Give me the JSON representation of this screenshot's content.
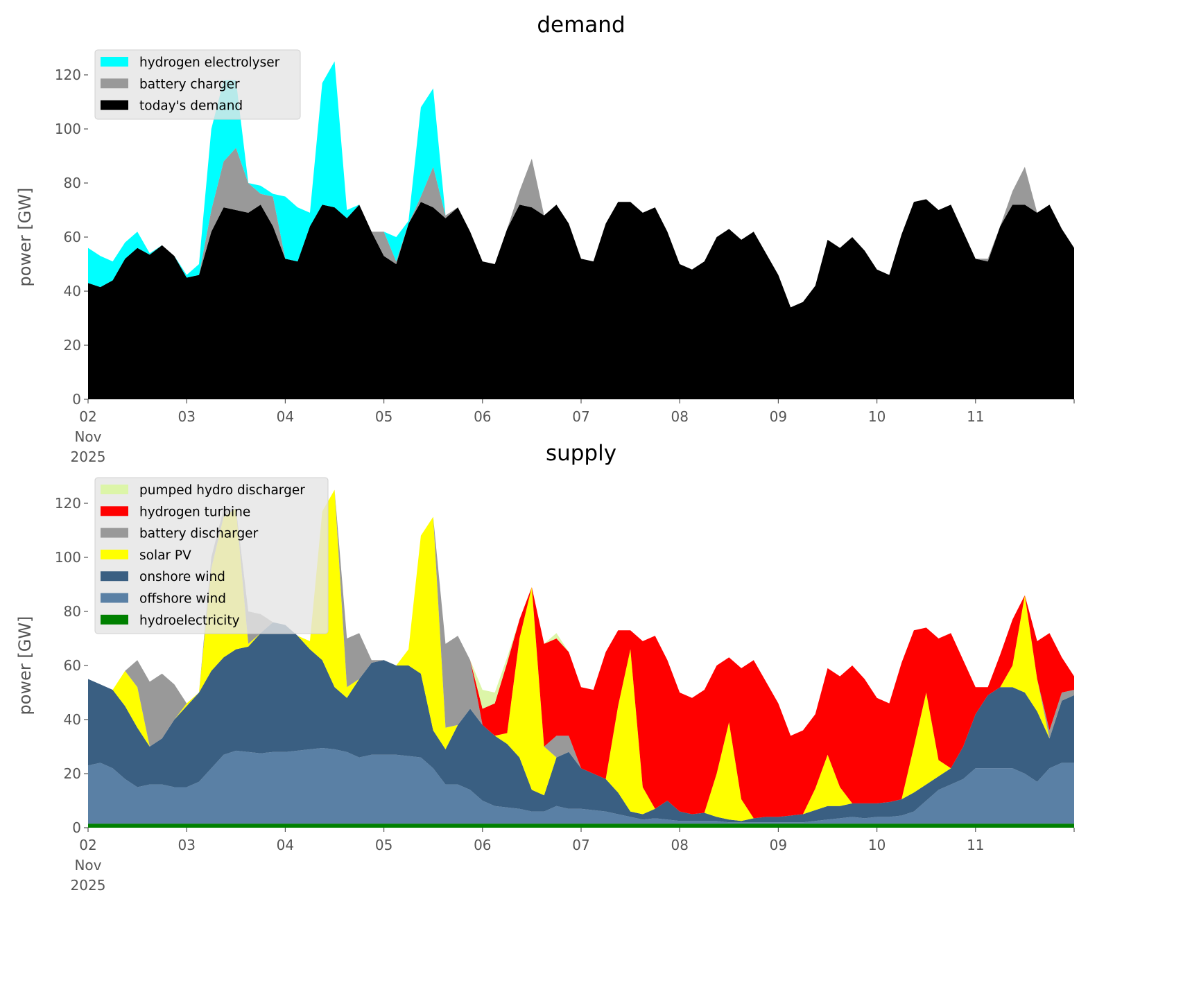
{
  "chart_data": [
    {
      "type": "area",
      "stacked": true,
      "title": "demand",
      "ylabel": "power [GW]",
      "xlabel": "",
      "ylim": [
        0,
        130
      ],
      "yticks": [
        "0",
        "20",
        "40",
        "60",
        "80",
        "100",
        "120"
      ],
      "xticks": [
        [
          "02",
          "Nov",
          "2025"
        ],
        [
          "03"
        ],
        [
          "04"
        ],
        [
          "05"
        ],
        [
          "06"
        ],
        [
          "07"
        ],
        [
          "08"
        ],
        [
          "09"
        ],
        [
          "10"
        ],
        [
          "11"
        ]
      ],
      "points_per_day": 8,
      "grid": false,
      "legend_position": "top-left",
      "series": [
        {
          "name": "today's demand",
          "color": "#000000",
          "values": [
            43,
            41.5,
            44,
            52,
            56,
            53.5,
            57,
            53,
            45,
            46,
            62,
            71,
            70,
            69,
            72,
            64,
            52,
            51,
            64,
            72,
            71,
            67,
            72,
            62,
            53,
            50,
            65,
            73,
            71,
            67,
            71,
            62,
            51,
            50,
            63,
            72,
            71,
            68,
            72,
            65,
            52,
            51,
            65,
            73,
            73,
            69,
            71,
            62,
            50,
            48,
            51,
            60,
            63,
            59,
            62,
            54,
            46,
            34,
            36,
            42,
            59,
            56,
            60,
            55,
            48,
            46,
            61,
            73,
            74,
            70,
            72,
            62,
            52,
            51,
            64,
            72,
            72,
            69,
            72,
            63,
            56
          ]
        },
        {
          "name": "battery charger",
          "color": "#999999",
          "values": [
            0,
            0,
            0,
            0,
            0,
            0,
            0,
            0,
            0,
            0,
            8,
            17,
            23,
            11,
            4,
            11,
            0,
            0,
            0,
            0,
            0,
            0,
            0,
            0,
            9,
            1,
            0,
            2,
            15,
            1,
            0,
            0,
            0,
            0,
            0,
            5,
            18,
            0,
            0,
            0,
            0,
            0,
            0,
            0,
            0,
            0,
            0,
            0,
            0,
            0,
            0,
            0,
            0,
            0,
            0,
            0,
            0,
            0,
            0,
            0,
            0,
            0,
            0,
            0,
            0,
            0,
            0,
            0,
            0,
            0,
            0,
            0,
            0,
            1,
            0,
            5,
            14,
            0,
            0,
            0,
            0
          ]
        },
        {
          "name": "hydrogen electrolyser",
          "color": "#00ffff",
          "values": [
            13,
            11.5,
            7,
            6,
            6,
            0.5,
            0,
            0,
            1,
            4,
            30,
            30,
            25,
            0,
            3,
            1,
            23,
            20,
            5,
            45,
            54,
            3,
            0,
            0,
            0,
            9,
            1,
            33,
            29,
            0,
            0,
            0,
            0,
            0,
            0,
            0,
            0,
            0,
            0,
            0,
            0,
            0,
            0,
            0,
            0,
            0,
            0,
            0,
            0,
            0,
            0,
            0,
            0,
            0,
            0,
            0,
            0,
            0,
            0,
            0,
            0,
            0,
            0,
            0,
            0,
            0,
            0,
            0,
            0,
            0,
            0,
            0,
            0,
            0,
            0,
            0,
            0,
            0,
            0,
            0,
            0
          ]
        }
      ],
      "legend_order": [
        "hydrogen electrolyser",
        "battery charger",
        "today's demand"
      ]
    },
    {
      "type": "area",
      "stacked": true,
      "title": "supply",
      "ylabel": "power [GW]",
      "xlabel": "",
      "ylim": [
        0,
        130
      ],
      "yticks": [
        "0",
        "20",
        "40",
        "60",
        "80",
        "100",
        "120"
      ],
      "xticks": [
        [
          "02",
          "Nov",
          "2025"
        ],
        [
          "03"
        ],
        [
          "04"
        ],
        [
          "05"
        ],
        [
          "06"
        ],
        [
          "07"
        ],
        [
          "08"
        ],
        [
          "09"
        ],
        [
          "10"
        ],
        [
          "11"
        ]
      ],
      "points_per_day": 8,
      "grid": false,
      "legend_position": "top-left",
      "series": [
        {
          "name": "hydroelectricity",
          "color": "#008000",
          "values": [
            1.5,
            1.5,
            1.5,
            1.5,
            1.5,
            1.5,
            1.5,
            1.5,
            1.5,
            1.5,
            1.5,
            1.5,
            1.5,
            1.5,
            1.5,
            1.5,
            1.5,
            1.5,
            1.5,
            1.5,
            1.5,
            1.5,
            1.5,
            1.5,
            1.5,
            1.5,
            1.5,
            1.5,
            1.5,
            1.5,
            1.5,
            1.5,
            1.5,
            1.5,
            1.5,
            1.5,
            1.5,
            1.5,
            1.5,
            1.5,
            1.5,
            1.5,
            1.5,
            1.5,
            1.5,
            1.5,
            1.5,
            1.5,
            1.5,
            1.5,
            1.5,
            1.5,
            1.5,
            1.5,
            1.5,
            1.5,
            1.5,
            1.5,
            1.5,
            1.5,
            1.5,
            1.5,
            1.5,
            1.5,
            1.5,
            1.5,
            1.5,
            1.5,
            1.5,
            1.5,
            1.5,
            1.5,
            1.5,
            1.5,
            1.5,
            1.5,
            1.5,
            1.5,
            1.5,
            1.5,
            1.5
          ]
        },
        {
          "name": "offshore wind",
          "color": "#5a80a5",
          "values": [
            21.5,
            22.5,
            20.5,
            16.5,
            13.5,
            14.5,
            14.5,
            13.5,
            13.5,
            15.5,
            20.5,
            25.5,
            27,
            26.5,
            26,
            26.5,
            26.5,
            27,
            27.5,
            28,
            27.5,
            26.5,
            24.5,
            25.5,
            25.5,
            25.5,
            25,
            24.5,
            20.5,
            14.5,
            14.5,
            12.5,
            8.5,
            6.5,
            6,
            5.5,
            4.5,
            4.5,
            6.5,
            5.5,
            5.5,
            5,
            4.5,
            3.5,
            2.5,
            1.5,
            2,
            1.5,
            1,
            1,
            1,
            1,
            0.5,
            0.5,
            0.5,
            0.5,
            0.5,
            0.5,
            0.5,
            1,
            1.5,
            2,
            2.5,
            2,
            2.5,
            2.5,
            3,
            4.5,
            8.5,
            12.5,
            14.5,
            16.5,
            20.5,
            20.5,
            20.5,
            20.5,
            18.5,
            15.5,
            20.5,
            22.5,
            22.5
          ]
        },
        {
          "name": "onshore wind",
          "color": "#3a5f82",
          "values": [
            32,
            29,
            29,
            27,
            22,
            14,
            17,
            25,
            30,
            33,
            36,
            36,
            37.5,
            39,
            44.5,
            48,
            47,
            42.5,
            37,
            32.5,
            23,
            20,
            29,
            34,
            35,
            33,
            33.5,
            31,
            14,
            13,
            22,
            30,
            28,
            26,
            23.5,
            19,
            8,
            6,
            18,
            21,
            15,
            13.5,
            12,
            8,
            2,
            2,
            3.5,
            7,
            3.5,
            2.5,
            3,
            1.5,
            1,
            0.5,
            1.5,
            2,
            2,
            2.5,
            3,
            4,
            5,
            4.5,
            5,
            5.5,
            5,
            5.5,
            6,
            7,
            6,
            5,
            6,
            12,
            20,
            27,
            30,
            30,
            30,
            26,
            11,
            23,
            25
          ]
        },
        {
          "name": "solar PV",
          "color": "#ffff00",
          "values": [
            0,
            0,
            0,
            13,
            15,
            0,
            0,
            0,
            1,
            0,
            38,
            52,
            52,
            1,
            0,
            0,
            0,
            0,
            3,
            55,
            73,
            4,
            0,
            0,
            0,
            0,
            6,
            51,
            79,
            8,
            0,
            0,
            0,
            0,
            4,
            44,
            75,
            18,
            0,
            0,
            0,
            0,
            0,
            32,
            60,
            10,
            0,
            0,
            0,
            0,
            0,
            16,
            36,
            8,
            0,
            0,
            0,
            0,
            0,
            8,
            19,
            7,
            0,
            0,
            0,
            0,
            0,
            17,
            34,
            6,
            0,
            0,
            0,
            0,
            0,
            8,
            36,
            12,
            0,
            0,
            0
          ]
        },
        {
          "name": "battery discharger",
          "color": "#999999",
          "values": [
            0,
            0,
            0,
            0,
            10,
            24,
            24,
            13,
            0,
            0,
            4,
            3,
            0,
            12,
            7,
            0,
            0,
            0,
            0,
            0,
            0,
            18,
            17,
            1,
            0,
            0,
            0,
            0,
            0,
            31,
            33,
            18,
            0,
            0,
            0,
            0,
            0,
            0,
            8,
            6,
            0,
            0,
            0,
            0,
            0,
            0,
            0,
            0,
            0,
            0,
            0,
            0,
            0,
            0,
            0,
            0,
            0,
            0,
            0,
            0,
            0,
            0,
            0,
            0,
            0,
            0,
            0,
            0,
            0,
            0,
            0,
            0,
            0,
            0,
            0,
            0,
            0,
            0,
            3,
            3,
            2
          ]
        },
        {
          "name": "hydrogen turbine",
          "color": "#ff0000",
          "values": [
            0,
            0,
            0,
            0,
            0,
            0,
            0,
            0,
            0,
            0,
            0,
            0,
            0,
            0,
            0,
            0,
            0,
            0,
            0,
            0,
            0,
            0,
            0,
            0,
            0,
            0,
            0,
            0,
            0,
            0,
            0,
            0,
            6,
            12,
            26,
            7,
            0,
            38,
            36,
            31,
            30,
            31,
            47,
            28,
            7,
            54,
            64,
            52,
            44,
            43,
            45.5,
            40,
            24,
            48.5,
            58.5,
            50,
            42,
            29.5,
            31,
            27.5,
            32,
            41,
            51,
            46,
            39,
            36.5,
            50.5,
            43,
            24,
            45,
            50,
            32,
            10,
            3,
            12,
            17,
            0,
            14,
            36,
            13,
            5
          ]
        },
        {
          "name": "pumped hydro discharger",
          "color": "#dcf5a8",
          "values": [
            0,
            0,
            0,
            0,
            0,
            0,
            0,
            0,
            0,
            0,
            0,
            0,
            0,
            0,
            0,
            0,
            0,
            0,
            0,
            0,
            0,
            0,
            0,
            0,
            0,
            0,
            0,
            0,
            0,
            0,
            0,
            0,
            7,
            4,
            2,
            0,
            0,
            0,
            2,
            0,
            0,
            0,
            0,
            0,
            0,
            0,
            0,
            0,
            0,
            0,
            0,
            0,
            0,
            0,
            0,
            0,
            0,
            0,
            0,
            0,
            0,
            0,
            0,
            0,
            0,
            0,
            0,
            0,
            0,
            0,
            0,
            0,
            0,
            0,
            0,
            0,
            0,
            0,
            0,
            0,
            0
          ]
        }
      ],
      "legend_order": [
        "pumped hydro discharger",
        "hydrogen turbine",
        "battery discharger",
        "solar PV",
        "onshore wind",
        "offshore wind",
        "hydroelectricity"
      ]
    }
  ]
}
